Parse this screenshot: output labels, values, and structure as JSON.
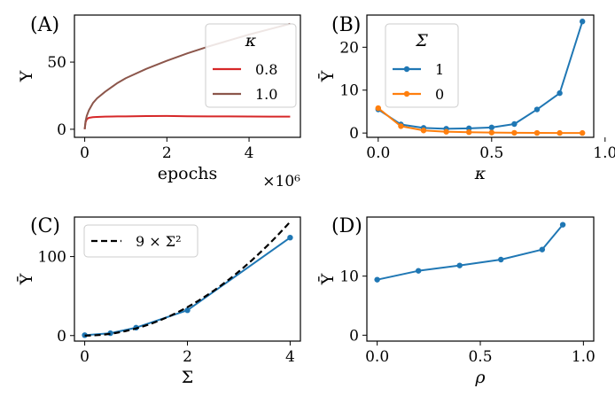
{
  "colors": {
    "c1": "#d62728",
    "c2": "#8c564b",
    "c3": "#1f77b4",
    "c4": "#ff7f0e",
    "black": "#000000"
  },
  "chart_data": [
    {
      "panel_label": "(A)",
      "type": "line",
      "xlabel": "epochs",
      "ylabel": "Υ",
      "x_offset": "×10⁶",
      "xlim": [
        -0.25,
        5.25
      ],
      "ylim": [
        -6,
        85
      ],
      "xticks": [
        0,
        2,
        4
      ],
      "yticks": [
        0,
        50
      ],
      "legend": {
        "title": "κ",
        "position": "top-right"
      },
      "series": [
        {
          "name": "0.8",
          "color": "#d62728",
          "x": [
            0,
            0.02,
            0.05,
            0.1,
            0.2,
            0.3,
            0.5,
            0.8,
            1.0,
            1.5,
            2.0,
            2.5,
            3.0,
            3.5,
            4.0,
            4.5,
            5.0
          ],
          "y": [
            0,
            5,
            7.5,
            8.5,
            9,
            9.2,
            9.4,
            9.6,
            9.6,
            9.8,
            9.9,
            9.7,
            9.6,
            9.6,
            9.5,
            9.4,
            9.4
          ]
        },
        {
          "name": "1.0",
          "color": "#8c564b",
          "x": [
            0,
            0.02,
            0.05,
            0.1,
            0.2,
            0.3,
            0.5,
            0.8,
            1.0,
            1.5,
            2.0,
            2.5,
            3.0,
            3.5,
            4.0,
            4.5,
            5.0
          ],
          "y": [
            0,
            6,
            10,
            14,
            19.5,
            23,
            28,
            34.5,
            38,
            45,
            51,
            56.5,
            61.5,
            66,
            70.5,
            74.5,
            78.5
          ]
        }
      ]
    },
    {
      "panel_label": "(B)",
      "type": "line",
      "xlabel": "κ",
      "ylabel": "Ῡ",
      "xlim": [
        -0.05,
        0.95
      ],
      "ylim": [
        -1,
        27.5
      ],
      "xticks": [
        0.0,
        0.5,
        1.0
      ],
      "yticks": [
        0,
        10,
        20
      ],
      "legend": {
        "title": "Σ",
        "position": "top-left"
      },
      "series": [
        {
          "name": "1",
          "color": "#1f77b4",
          "x": [
            0,
            0.1,
            0.2,
            0.3,
            0.4,
            0.5,
            0.6,
            0.7,
            0.8,
            0.9
          ],
          "y": [
            5.5,
            2.0,
            1.2,
            1.0,
            1.1,
            1.3,
            2.1,
            5.5,
            9.3,
            26.0
          ]
        },
        {
          "name": "0",
          "color": "#ff7f0e",
          "x": [
            0,
            0.1,
            0.2,
            0.3,
            0.4,
            0.5,
            0.6,
            0.7,
            0.8,
            0.9
          ],
          "y": [
            5.8,
            1.6,
            0.6,
            0.3,
            0.2,
            0.1,
            0.05,
            0.02,
            0.01,
            0.01
          ]
        }
      ]
    },
    {
      "panel_label": "(C)",
      "type": "line",
      "xlabel": "Σ",
      "ylabel": "Ῡ",
      "xlim": [
        -0.2,
        4.2
      ],
      "ylim": [
        -7,
        150
      ],
      "xticks": [
        0,
        2,
        4
      ],
      "yticks": [
        0,
        100
      ],
      "legend": {
        "position": "top-left"
      },
      "series": [
        {
          "name": "",
          "color": "#1f77b4",
          "marker": true,
          "x": [
            0,
            0.5,
            1.0,
            2.0,
            4.0
          ],
          "y": [
            0.5,
            3,
            10,
            32,
            124
          ]
        }
      ],
      "curve": {
        "name": "9 × Σ²",
        "color": "#000000",
        "coef": 9,
        "power": 2
      }
    },
    {
      "panel_label": "(D)",
      "type": "line",
      "xlabel": "ρ",
      "ylabel": "Ῡ",
      "xlim": [
        -0.05,
        1.05
      ],
      "ylim": [
        -1,
        20
      ],
      "xticks": [
        0.0,
        0.5,
        1.0
      ],
      "yticks": [
        0,
        10
      ],
      "series": [
        {
          "name": "",
          "color": "#1f77b4",
          "marker": true,
          "x": [
            0,
            0.2,
            0.4,
            0.6,
            0.8,
            0.9
          ],
          "y": [
            9.4,
            10.9,
            11.8,
            12.8,
            14.5,
            18.7
          ]
        }
      ]
    }
  ]
}
